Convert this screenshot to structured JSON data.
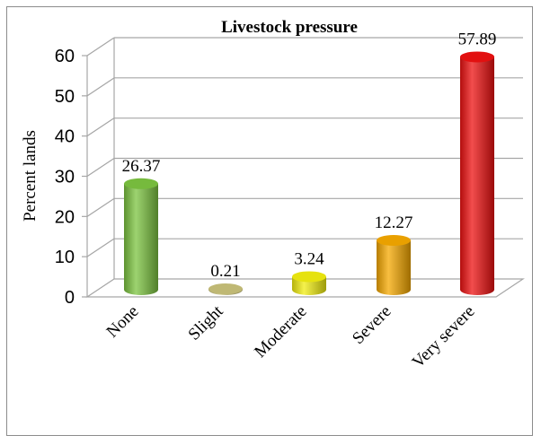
{
  "chart_data": {
    "type": "bar",
    "title": "Livestock pressure",
    "ylabel": "Percent lands",
    "xlabel": "",
    "categories": [
      "None",
      "Slight",
      "Moderate",
      "Severe",
      "Very severe"
    ],
    "values": [
      26.37,
      0.21,
      3.24,
      12.27,
      57.89
    ],
    "data_labels": [
      "26.37",
      "0.21",
      "3.24",
      "12.27",
      "57.89"
    ],
    "colors": [
      "#7cc440",
      "#c9c27a",
      "#f2ee10",
      "#f5a800",
      "#ee1111"
    ],
    "ylim": [
      0,
      60
    ],
    "yticks": [
      0,
      10,
      20,
      30,
      40,
      50,
      60
    ],
    "ytick_labels": [
      "0",
      "10",
      "20",
      "30",
      "40",
      "50",
      "60"
    ],
    "grid": true,
    "style": "3d-cylinder",
    "legend": "none"
  }
}
